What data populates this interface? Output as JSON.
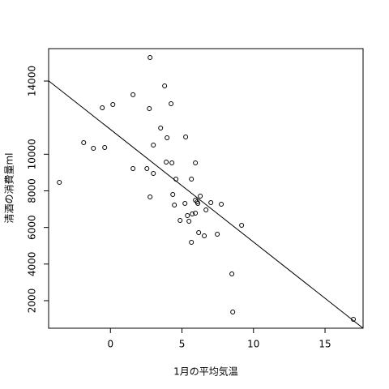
{
  "chart_data": {
    "type": "scatter",
    "x_label": "1月の平均気温",
    "y_label": "清酒の消費量ml",
    "x": [
      -3.57,
      -1.87,
      -1.19,
      -0.4,
      -0.57,
      0.17,
      1.58,
      1.58,
      2.55,
      2.77,
      2.72,
      2.77,
      3.0,
      3.0,
      3.51,
      3.79,
      3.9,
      3.96,
      4.24,
      4.3,
      4.36,
      4.47,
      4.58,
      4.87,
      5.21,
      5.26,
      5.38,
      5.49,
      5.66,
      5.66,
      5.72,
      5.94,
      5.94,
      5.94,
      6.06,
      6.11,
      6.17,
      6.28,
      6.56,
      6.68,
      7.02,
      7.47,
      7.75,
      8.49,
      9.17,
      8.55,
      16.98
    ],
    "values": [
      8465,
      10635,
      10325,
      10370,
      12540,
      12716,
      13250,
      9218,
      9218,
      15284,
      12494,
      7668,
      10500,
      8950,
      11430,
      13734,
      9572,
      10900,
      12760,
      9528,
      7800,
      7225,
      8642,
      6384,
      7314,
      10945,
      6650,
      6340,
      8642,
      5188,
      6738,
      9528,
      6782,
      7490,
      7400,
      7314,
      5720,
      7712,
      5543,
      6960,
      7358,
      5630,
      7270,
      3460,
      6118,
      1380,
      982
    ],
    "color": "#000000",
    "regression": {
      "intercept": 11355,
      "slope": -615
    },
    "xlim": [
      -4.32,
      17.66
    ],
    "ylim": [
      494,
      15771
    ],
    "xticks": [
      0,
      5,
      10,
      15
    ],
    "yticks": [
      2000,
      4000,
      6000,
      8000,
      10000,
      14000
    ]
  }
}
